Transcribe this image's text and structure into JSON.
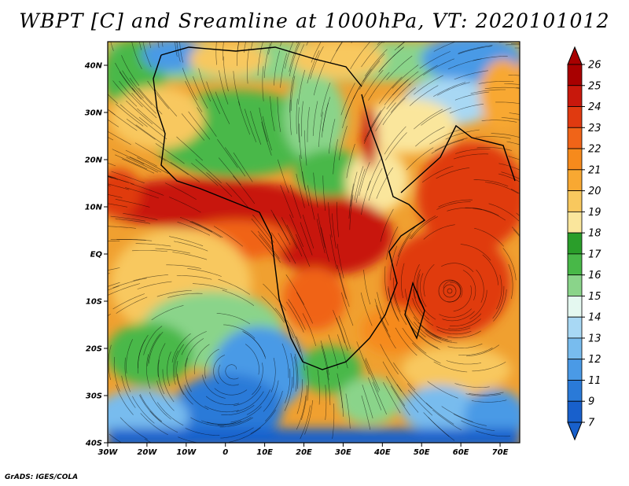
{
  "title": "WBPT [C] and Sreamline at 1000hPa, VT: 2020101012",
  "credit": "GrADS: IGES/COLA",
  "map": {
    "lon_range": [
      -30,
      75
    ],
    "lat_range": [
      -40,
      45
    ],
    "field": "WBPT [C]",
    "level": "1000hPa"
  },
  "lat_ticks": [
    {
      "value": 40,
      "label": "40N"
    },
    {
      "value": 30,
      "label": "30N"
    },
    {
      "value": 20,
      "label": "20N"
    },
    {
      "value": 10,
      "label": "10N"
    },
    {
      "value": 0,
      "label": "EQ"
    },
    {
      "value": -10,
      "label": "10S"
    },
    {
      "value": -20,
      "label": "20S"
    },
    {
      "value": -30,
      "label": "30S"
    },
    {
      "value": -40,
      "label": "40S"
    }
  ],
  "lon_ticks": [
    {
      "value": -30,
      "label": "30W"
    },
    {
      "value": -20,
      "label": "20W"
    },
    {
      "value": -10,
      "label": "10W"
    },
    {
      "value": 0,
      "label": "0"
    },
    {
      "value": 10,
      "label": "10E"
    },
    {
      "value": 20,
      "label": "20E"
    },
    {
      "value": 30,
      "label": "30E"
    },
    {
      "value": 40,
      "label": "40E"
    },
    {
      "value": 50,
      "label": "50E"
    },
    {
      "value": 60,
      "label": "60E"
    },
    {
      "value": 70,
      "label": "70E"
    }
  ],
  "colorbar": {
    "labels": [
      "26",
      "25",
      "24",
      "23",
      "22",
      "21",
      "20",
      "19",
      "18",
      "17",
      "16",
      "15",
      "14",
      "13",
      "12",
      "11",
      "9",
      "7"
    ],
    "colors": [
      "#a80000",
      "#c8180c",
      "#e03a10",
      "#f06418",
      "#f68a1c",
      "#f8a832",
      "#f8c85e",
      "#fae69c",
      "#2a9e2a",
      "#48b848",
      "#8ad48a",
      "#e4f8f0",
      "#a8d8f4",
      "#78bcee",
      "#4a9ae6",
      "#2a7ad8",
      "#1860cc"
    ],
    "top_tip_color": "#a80000",
    "bottom_tip_color": "#1860cc"
  }
}
